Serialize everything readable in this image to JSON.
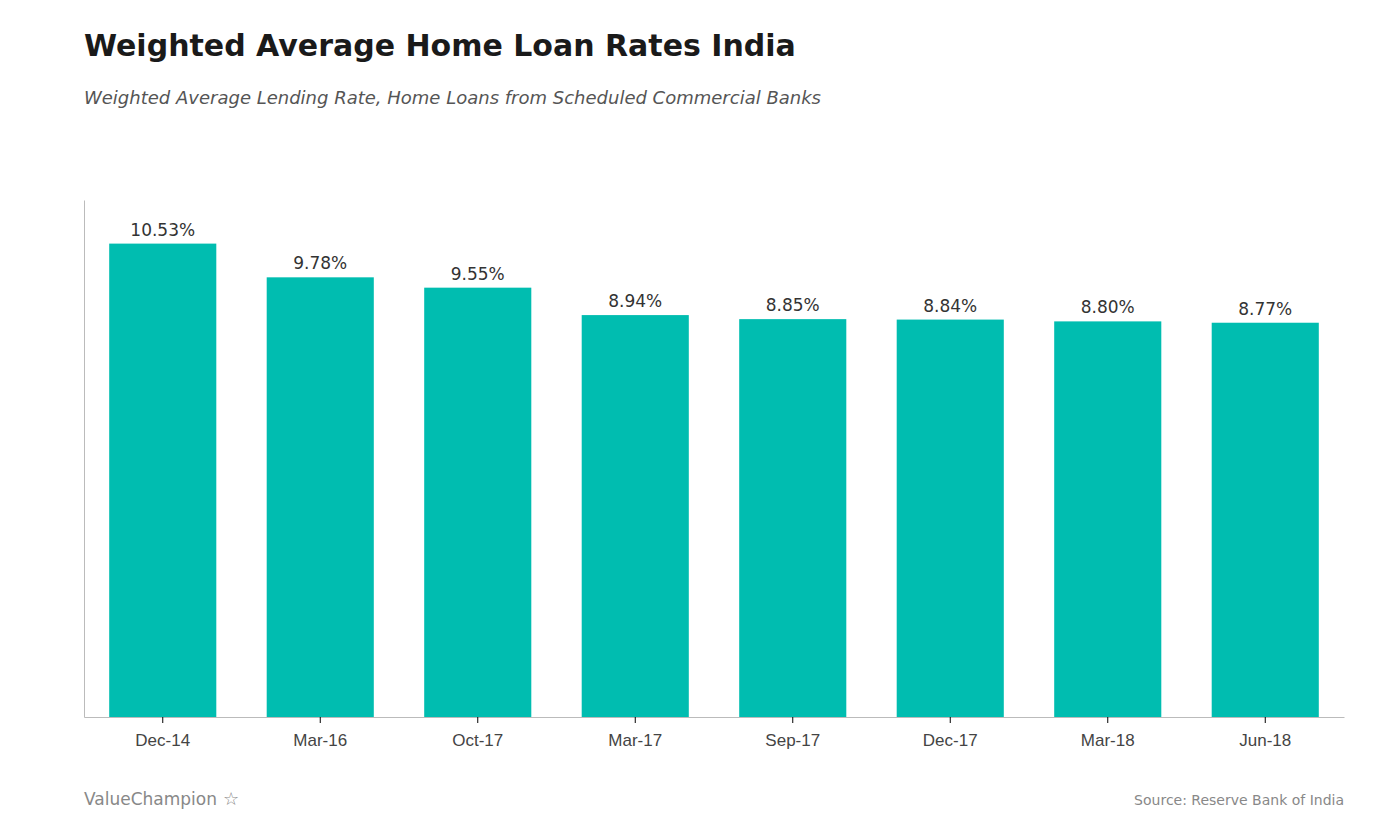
{
  "chart_data": {
    "type": "bar",
    "title": "Weighted Average Home Loan Rates India",
    "subtitle": "Weighted Average Lending Rate, Home Loans from Scheduled Commercial Banks",
    "categories": [
      "Dec-14",
      "Mar-16",
      "Oct-17",
      "Mar-17",
      "Sep-17",
      "Dec-17",
      "Mar-18",
      "Jun-18"
    ],
    "values": [
      10.53,
      9.78,
      9.55,
      8.94,
      8.85,
      8.84,
      8.8,
      8.77
    ],
    "value_labels": [
      "10.53%",
      "9.78%",
      "9.55%",
      "8.94%",
      "8.85%",
      "8.84%",
      "8.80%",
      "8.77%"
    ],
    "data_labels": true,
    "color": "#00BDB0",
    "ylim": [
      0,
      11.5
    ],
    "grid": false,
    "tick_labels": "x",
    "annotations": [
      "Source: Reserve Bank of India",
      "ValueChampion",
      "☆"
    ]
  }
}
